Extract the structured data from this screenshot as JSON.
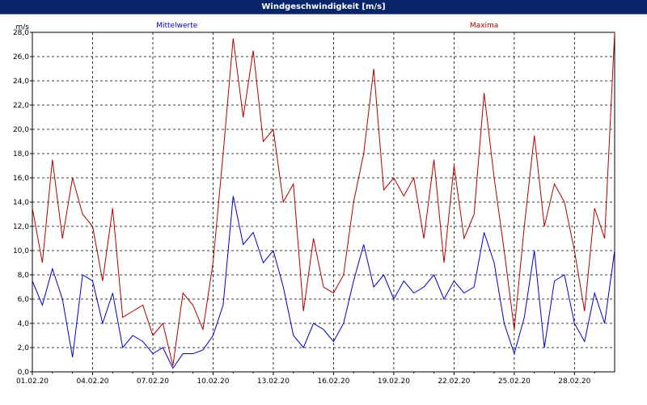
{
  "window": {
    "title": "Windgeschwindigkeit [m/s]"
  },
  "colors": {
    "mean": "#0000c8",
    "max": "#b00000",
    "grid": "#000000",
    "titlebar": "#08246b"
  },
  "chart_data": {
    "type": "line",
    "title": "Windgeschwindigkeit [m/s]",
    "ylabel": "m/s",
    "ylim": [
      0,
      28
    ],
    "yticks": [
      "0,0",
      "2,0",
      "4,0",
      "6,0",
      "8,0",
      "10,0",
      "12,0",
      "14,0",
      "16,0",
      "18,0",
      "20,0",
      "22,0",
      "24,0",
      "26,0",
      "28,0"
    ],
    "xlim": [
      "01.02.20",
      "01.03.20"
    ],
    "xticks": [
      "01.02.20",
      "04.02.20",
      "07.02.20",
      "10.02.20",
      "13.02.20",
      "16.02.20",
      "19.02.20",
      "22.02.20",
      "25.02.20",
      "28.02.20"
    ],
    "grid": true,
    "series": [
      {
        "name": "Mittelwerte",
        "color": "#0000c8",
        "x_days": [
          0,
          0.5,
          1,
          1.5,
          2,
          2.5,
          3,
          3.5,
          4,
          4.5,
          5,
          5.5,
          6,
          6.5,
          7,
          7.5,
          8,
          8.5,
          9,
          9.5,
          10,
          10.5,
          11,
          11.5,
          12,
          12.5,
          13,
          13.5,
          14,
          14.5,
          15,
          15.5,
          16,
          16.5,
          17,
          17.5,
          18,
          18.5,
          19,
          19.5,
          20,
          20.5,
          21,
          21.5,
          22,
          22.5,
          23,
          23.5,
          24,
          24.5,
          25,
          25.5,
          26,
          26.5,
          27,
          27.5,
          28,
          28.5,
          29
        ],
        "values": [
          7.5,
          5.5,
          8.5,
          6.0,
          1.2,
          8.0,
          7.5,
          4.0,
          6.5,
          2.0,
          3.0,
          2.5,
          1.5,
          2.0,
          0.3,
          1.5,
          1.5,
          1.8,
          3.0,
          5.5,
          14.5,
          10.5,
          11.5,
          9.0,
          10.0,
          7.0,
          3.0,
          2.0,
          4.0,
          3.5,
          2.5,
          4.0,
          7.5,
          10.5,
          7.0,
          8.0,
          6.0,
          7.5,
          6.5,
          7.0,
          8.0,
          6.0,
          7.5,
          6.5,
          7.0,
          11.5,
          9.0,
          4.0,
          1.5,
          4.5,
          10.0,
          2.0,
          7.5,
          8.0,
          4.0,
          2.5,
          6.5,
          4.0,
          10.0
        ]
      },
      {
        "name": "Maxima",
        "color": "#b00000",
        "x_days": [
          0,
          0.5,
          1,
          1.5,
          2,
          2.5,
          3,
          3.5,
          4,
          4.5,
          5,
          5.5,
          6,
          6.5,
          7,
          7.5,
          8,
          8.5,
          9,
          9.5,
          10,
          10.5,
          11,
          11.5,
          12,
          12.5,
          13,
          13.5,
          14,
          14.5,
          15,
          15.5,
          16,
          16.5,
          17,
          17.5,
          18,
          18.5,
          19,
          19.5,
          20,
          20.5,
          21,
          21.5,
          22,
          22.5,
          23,
          23.5,
          24,
          24.5,
          25,
          25.5,
          26,
          26.5,
          27,
          27.5,
          28,
          28.5,
          29
        ],
        "values": [
          13.5,
          9.0,
          17.5,
          11.0,
          16.0,
          13.0,
          12.0,
          7.5,
          13.5,
          4.5,
          5.0,
          5.5,
          3.0,
          4.0,
          0.5,
          6.5,
          5.5,
          3.5,
          9.0,
          18.0,
          27.5,
          21.0,
          26.5,
          19.0,
          20.0,
          14.0,
          15.5,
          5.0,
          11.0,
          7.0,
          6.5,
          8.0,
          14.0,
          18.0,
          25.0,
          15.0,
          16.0,
          14.5,
          16.0,
          11.0,
          17.5,
          9.0,
          17.0,
          11.0,
          13.0,
          23.0,
          16.0,
          10.0,
          3.5,
          12.0,
          19.5,
          12.0,
          15.5,
          14.0,
          10.0,
          5.0,
          13.5,
          11.0,
          28.0
        ]
      }
    ]
  }
}
